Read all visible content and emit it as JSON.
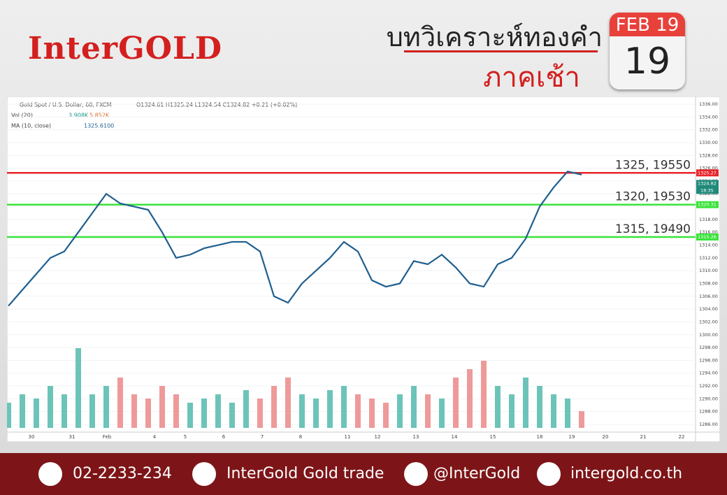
{
  "header": {
    "logo": "InterGOLD",
    "title": "บทวิเคราะห์ทองคำ",
    "subtitle": "ภาคเช้า",
    "calendar_month": "FEB 19",
    "calendar_day": "19"
  },
  "chart_data": {
    "type": "line",
    "symbol": "Gold Spot / U.S. Dollar, 60, FXCM",
    "ohlc": "O1324.61 H1325.24 L1324.54 C1324.82 +0.21 (+0.02%)",
    "vol_label": "Vol (20)",
    "vol_values": [
      "3.908K",
      "5.852K"
    ],
    "ma_label": "MA (10, close)",
    "ma_value": "1325.6100",
    "ylim": [
      1286,
      1336
    ],
    "yticks": [
      {
        "value": 1286,
        "label": "1286.00"
      },
      {
        "value": 1288,
        "label": "1288.00"
      },
      {
        "value": 1290,
        "label": "1290.00"
      },
      {
        "value": 1292,
        "label": "1292.00"
      },
      {
        "value": 1294,
        "label": "1294.00"
      },
      {
        "value": 1296,
        "label": "1296.00"
      },
      {
        "value": 1298,
        "label": "1298.00"
      },
      {
        "value": 1300,
        "label": "1300.00"
      },
      {
        "value": 1302,
        "label": "1302.00"
      },
      {
        "value": 1304,
        "label": "1304.00"
      },
      {
        "value": 1306,
        "label": "1306.00"
      },
      {
        "value": 1308,
        "label": "1308.00"
      },
      {
        "value": 1310,
        "label": "1310.00"
      },
      {
        "value": 1312,
        "label": "1312.00"
      },
      {
        "value": 1314,
        "label": "1314.00"
      },
      {
        "value": 1316,
        "label": "1316.00"
      },
      {
        "value": 1318,
        "label": "1318.00"
      },
      {
        "value": 1320,
        "label": "1320.00"
      },
      {
        "value": 1322,
        "label": "1322.00"
      },
      {
        "value": 1324,
        "label": "1324.00"
      },
      {
        "value": 1326,
        "label": "1326.00"
      },
      {
        "value": 1328,
        "label": "1328.00"
      },
      {
        "value": 1330,
        "label": "1330.00"
      },
      {
        "value": 1332,
        "label": "1332.00"
      },
      {
        "value": 1334,
        "label": "1334.00"
      },
      {
        "value": 1336,
        "label": "1336.00"
      }
    ],
    "xlabels": [
      "30",
      "31",
      "Feb",
      "4",
      "5",
      "6",
      "7",
      "8",
      "11",
      "12",
      "13",
      "14",
      "15",
      "18",
      "19",
      "20",
      "21",
      "22"
    ],
    "series": [
      {
        "name": "MA (10, close)",
        "color": "#1f5f8f",
        "values": [
          1304.5,
          1307,
          1309.5,
          1312,
          1313,
          1316,
          1319,
          1322,
          1320.5,
          1320,
          1319.5,
          1316,
          1312,
          1312.5,
          1313.5,
          1314,
          1314.5,
          1314.5,
          1313,
          1306,
          1305,
          1308,
          1310,
          1312,
          1314.5,
          1313,
          1308.5,
          1307.5,
          1308,
          1311.5,
          1311,
          1312.5,
          1310.5,
          1308,
          1307.5,
          1311,
          1312,
          1315,
          1320,
          1323,
          1325.5,
          1325
        ]
      }
    ],
    "volume": {
      "values": [
        3,
        4,
        3.5,
        5,
        4,
        9.5,
        4,
        5,
        6,
        4,
        3.5,
        5,
        4,
        3,
        3.5,
        4,
        3,
        4.5,
        3.5,
        5,
        6,
        4,
        3.5,
        4.5,
        5,
        4,
        3.5,
        3,
        4,
        5,
        4,
        3.5,
        6,
        7,
        8,
        5,
        4,
        6,
        5,
        4,
        3.5,
        2
      ],
      "up_color": "#6cc4b9",
      "down_color": "#ee9a9a"
    },
    "levels": [
      {
        "price": 1325.27,
        "color": "#e8262b",
        "note": "1325, 19550"
      },
      {
        "price": 1320.31,
        "color": "#3be33b",
        "note": "1320, 19530"
      },
      {
        "price": 1315.26,
        "color": "#3be33b",
        "note": "1315, 19490"
      }
    ],
    "last_price": 1324.82,
    "countdown": "18:35"
  },
  "footer": {
    "phone": "02-2233-234",
    "facebook": "InterGold Gold trade",
    "line": "@InterGold",
    "web": "intergold.co.th"
  }
}
